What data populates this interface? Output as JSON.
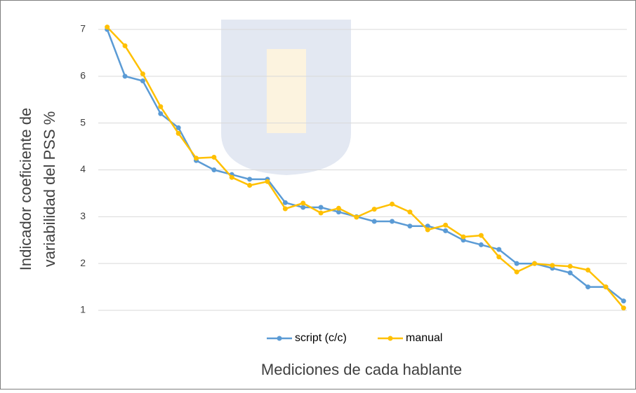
{
  "chart_data": {
    "type": "line",
    "y_label": [
      "Indicador coeficiente de",
      "variabilidad del PSS %"
    ],
    "x_label": "Mediciones de cada hablante",
    "categories": [
      null,
      null,
      null,
      null,
      null,
      null,
      null,
      null,
      null,
      null,
      null,
      null,
      null,
      null,
      null,
      null,
      null,
      null,
      null,
      null,
      null,
      null,
      null,
      null,
      null,
      null,
      null,
      null,
      null,
      null
    ],
    "series": [
      {
        "name": "script (c/c)",
        "color": "#5b9bd5",
        "values": [
          7.0,
          6.0,
          5.9,
          5.2,
          4.9,
          4.2,
          4.0,
          3.9,
          3.8,
          3.8,
          3.3,
          3.2,
          3.2,
          3.1,
          3.0,
          2.9,
          2.9,
          2.8,
          2.8,
          2.7,
          2.5,
          2.4,
          2.3,
          2.0,
          2.0,
          1.9,
          1.8,
          1.5,
          1.5,
          1.2
        ]
      },
      {
        "name": "manual",
        "color": "#ffc000",
        "values": [
          7.05,
          6.65,
          6.05,
          5.35,
          4.78,
          4.25,
          4.27,
          3.84,
          3.67,
          3.75,
          3.17,
          3.29,
          3.08,
          3.18,
          2.99,
          3.16,
          3.27,
          3.1,
          2.72,
          2.82,
          2.57,
          2.6,
          2.14,
          1.82,
          2.0,
          1.96,
          1.94,
          1.86,
          1.5,
          1.05
        ]
      }
    ],
    "ylim": [
      1,
      7
    ],
    "yticks": [
      1,
      2,
      3,
      4,
      5,
      6,
      7
    ],
    "grid": true
  }
}
